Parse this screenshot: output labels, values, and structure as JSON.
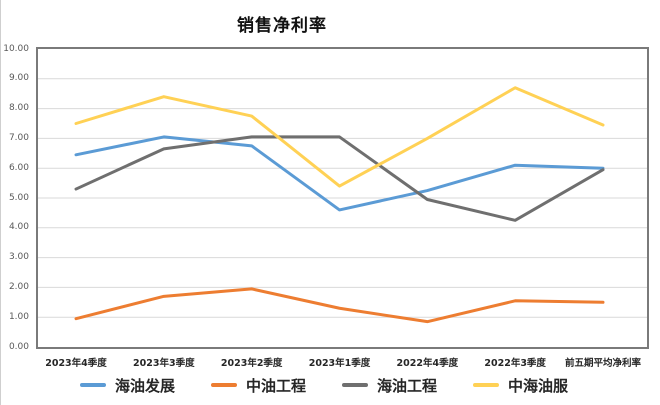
{
  "title": "销售净利率",
  "chart_data": {
    "type": "line",
    "title": "销售净利率",
    "categories": [
      "2023年4季度",
      "2023年3季度",
      "2023年2季度",
      "2023年1季度",
      "2022年4季度",
      "2022年3季度",
      "前五期平均净利率"
    ],
    "series": [
      {
        "name": "海油发展",
        "color": "#5B9BD5",
        "values": [
          6.45,
          7.05,
          6.75,
          4.6,
          5.25,
          6.1,
          6.0
        ]
      },
      {
        "name": "中油工程",
        "color": "#ED7D31",
        "values": [
          0.95,
          1.7,
          1.95,
          1.3,
          0.85,
          1.55,
          1.5
        ]
      },
      {
        "name": "海油工程",
        "color": "#6F6F6F",
        "values": [
          5.3,
          6.65,
          7.05,
          7.05,
          4.95,
          4.25,
          5.95
        ]
      },
      {
        "name": "中海油服",
        "color": "#FFD155",
        "values": [
          7.5,
          8.4,
          7.75,
          5.4,
          7.0,
          8.7,
          7.45
        ]
      }
    ],
    "ylim": [
      0,
      10
    ],
    "y_ticks": [
      "10.00",
      "9.00",
      "8.00",
      "7.00",
      "6.00",
      "5.00",
      "4.00",
      "3.00",
      "2.00",
      "1.00",
      "0.00"
    ],
    "xlabel": "",
    "ylabel": "",
    "grid": "horizontal",
    "gridline_color": "#d9d9d9",
    "axis_border_color": "#7a7a7a",
    "legend_position": "bottom"
  }
}
